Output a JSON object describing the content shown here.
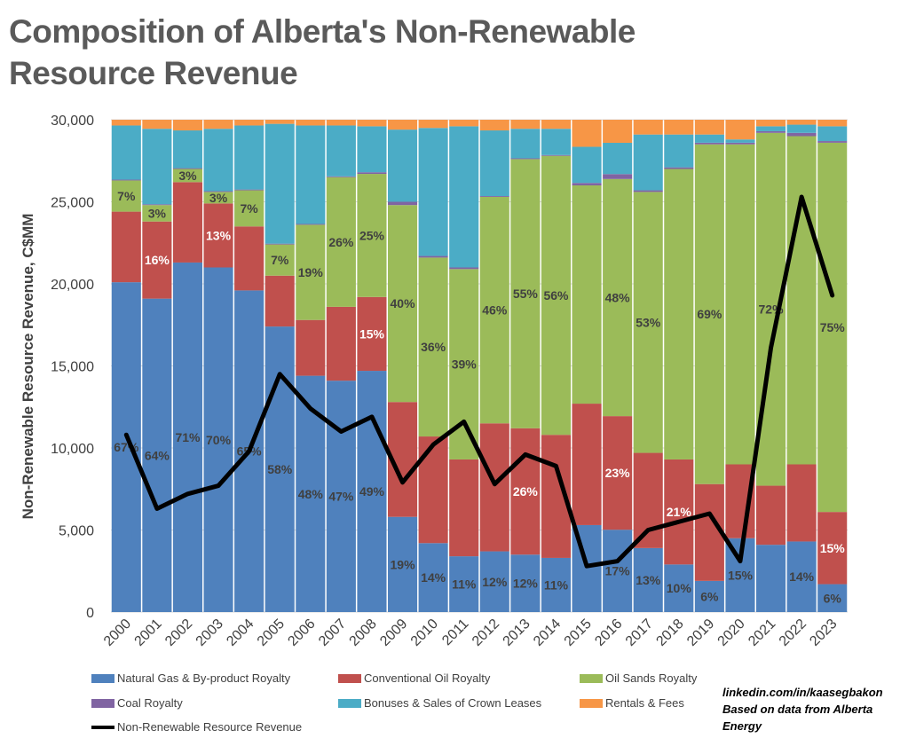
{
  "title": "Composition of Alberta's Non-Renewable Resource Revenue",
  "credit": {
    "line1": "linkedin.com/in/kaasegbakon",
    "line2": "Based on data from Alberta Energy"
  },
  "chart_data": {
    "type": "bar",
    "stacked": true,
    "title": "Composition of Alberta's Non-Renewable Resource Revenue",
    "xlabel": "",
    "ylabel": "Non-Renewable Resource Revenue, C$MM",
    "ylim": [
      0,
      30000
    ],
    "yticks": [
      0,
      5000,
      10000,
      15000,
      20000,
      25000,
      30000
    ],
    "ytick_labels": [
      "0",
      "5,000",
      "10,000",
      "15,000",
      "20,000",
      "25,000",
      "30,000"
    ],
    "categories": [
      "2000",
      "2001",
      "2002",
      "2003",
      "2004",
      "2005",
      "2006",
      "2007",
      "2008",
      "2009",
      "2010",
      "2011",
      "2012",
      "2013",
      "2014",
      "2015",
      "2016",
      "2017",
      "2018",
      "2019",
      "2020",
      "2021",
      "2022",
      "2023"
    ],
    "bar_total": 30000,
    "series": [
      {
        "name": "Natural Gas & By-product Royalty",
        "color": "#4f81bd",
        "values": [
          20100,
          19100,
          21300,
          21000,
          19600,
          17400,
          14400,
          14100,
          14700,
          5800,
          4200,
          3400,
          3700,
          3500,
          3300,
          5300,
          5000,
          3900,
          2900,
          1900,
          4500,
          4100,
          4300,
          1700
        ],
        "labels": [
          "67%",
          "64%",
          "71%",
          "70%",
          "65%",
          "58%",
          "48%",
          "47%",
          "49%",
          "19%",
          "14%",
          "11%",
          "12%",
          "12%",
          "11%",
          "",
          "17%",
          "13%",
          "10%",
          "6%",
          "15%",
          "",
          "14%",
          "6%"
        ]
      },
      {
        "name": "Conventional Oil Royalty",
        "color": "#c0504d",
        "values": [
          4300,
          4700,
          4900,
          3900,
          3900,
          3100,
          3400,
          4500,
          4500,
          7000,
          6500,
          5900,
          7800,
          7700,
          7500,
          7400,
          6900,
          5800,
          6400,
          5900,
          4500,
          3600,
          4700,
          4400
        ],
        "labels": [
          "",
          "16%",
          "",
          "13%",
          "",
          "",
          "",
          "",
          "15%",
          "",
          "",
          "",
          "",
          "26%",
          "",
          "",
          "23%",
          "",
          "21%",
          "",
          "",
          "",
          "",
          "15%"
        ]
      },
      {
        "name": "Oil Sands Royalty",
        "color": "#9bbb59",
        "values": [
          1900,
          1000,
          800,
          700,
          2200,
          1900,
          5800,
          7900,
          7500,
          12000,
          10900,
          11600,
          13800,
          16400,
          17000,
          13300,
          14400,
          15900,
          17700,
          20700,
          19500,
          21500,
          20000,
          22500
        ],
        "labels": [
          "7%",
          "3%",
          "3%",
          "3%",
          "7%",
          "7%",
          "19%",
          "26%",
          "25%",
          "40%",
          "36%",
          "39%",
          "46%",
          "55%",
          "56%",
          "",
          "48%",
          "53%",
          "",
          "69%",
          "",
          "72%",
          "",
          "75%"
        ]
      },
      {
        "name": "Coal Royalty",
        "color": "#8064a2",
        "values": [
          50,
          50,
          50,
          50,
          50,
          50,
          50,
          50,
          100,
          200,
          100,
          100,
          50,
          50,
          50,
          150,
          300,
          100,
          100,
          100,
          100,
          100,
          200,
          100
        ],
        "labels": [
          "",
          "",
          "",
          "",
          "",
          "",
          "",
          "",
          "",
          "",
          "",
          "",
          "",
          "",
          "",
          "",
          "",
          "",
          "",
          "",
          "",
          "",
          "",
          ""
        ]
      },
      {
        "name": "Bonuses & Sales of Crown Leases",
        "color": "#4bacc6",
        "values": [
          3300,
          4600,
          2300,
          3800,
          3900,
          7300,
          6000,
          3100,
          2800,
          4400,
          7800,
          8600,
          4000,
          1800,
          1600,
          2200,
          1900,
          3400,
          2000,
          500,
          200,
          300,
          500,
          900
        ],
        "labels": [
          "",
          "",
          "",
          "",
          "",
          "",
          "",
          "",
          "",
          "",
          "",
          "",
          "",
          "",
          "",
          "",
          "",
          "",
          "",
          "",
          "",
          "",
          "",
          ""
        ]
      },
      {
        "name": "Rentals & Fees",
        "color": "#f79646",
        "values": [
          350,
          550,
          650,
          550,
          350,
          250,
          350,
          350,
          400,
          600,
          500,
          400,
          650,
          550,
          550,
          1650,
          1400,
          900,
          900,
          900,
          1200,
          400,
          300,
          400
        ],
        "labels": [
          "",
          "",
          "",
          "",
          "",
          "",
          "",
          "",
          "",
          "",
          "",
          "",
          "",
          "",
          "",
          "",
          "",
          "",
          "",
          "",
          "",
          "",
          "",
          ""
        ]
      }
    ],
    "line_series": {
      "name": "Non-Renewable Resource Revenue",
      "color": "#000000",
      "values": [
        10800,
        6300,
        7200,
        7700,
        9800,
        14500,
        12400,
        11000,
        11900,
        7900,
        10200,
        11600,
        7800,
        9600,
        8900,
        2800,
        3100,
        5000,
        5500,
        6000,
        3100,
        16100,
        25300,
        19300
      ]
    },
    "legend_position": "bottom"
  }
}
